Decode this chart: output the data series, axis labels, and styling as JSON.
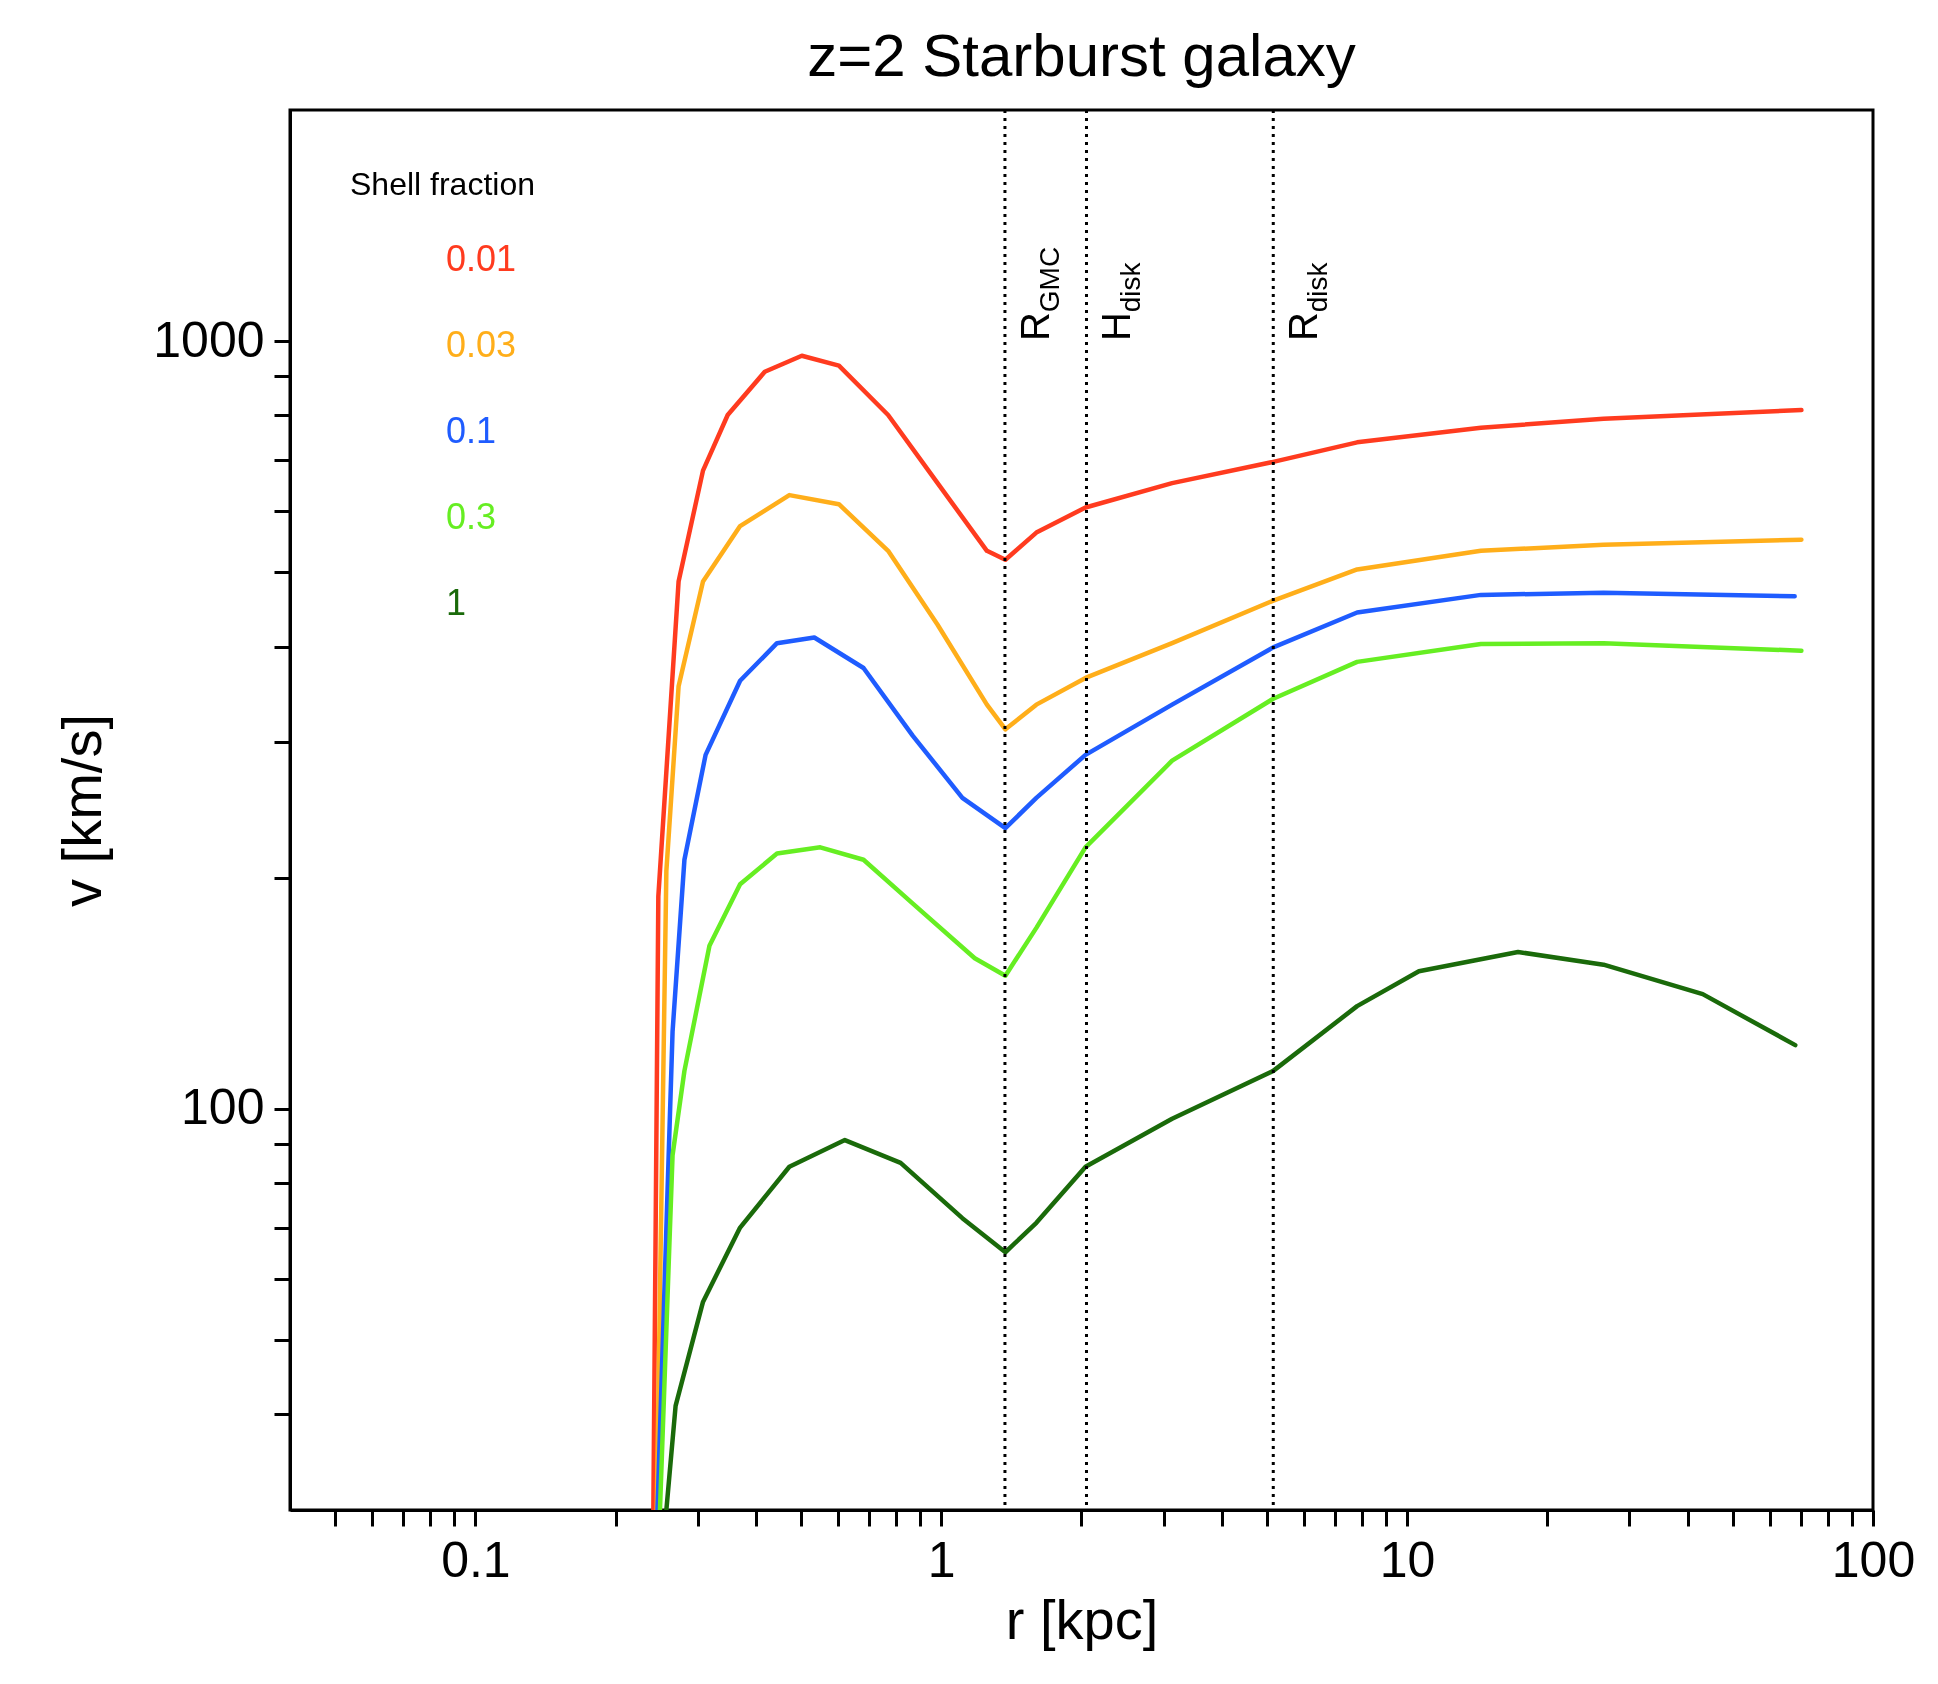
{
  "chart_data": {
    "type": "line",
    "title": "z=2 Starburst galaxy",
    "xlabel": "r [kpc]",
    "ylabel": "v [km/s]",
    "legend_title": "Shell fraction",
    "legend": "top left",
    "log": "xy",
    "grid": false,
    "marker": "none",
    "line_style": "solid",
    "xlim": [
      0.04,
      100
    ],
    "ylim": [
      30,
      2000
    ],
    "xticks": [
      {
        "value": 0.05,
        "label": null
      },
      {
        "value": 0.06,
        "label": null
      },
      {
        "value": 0.07,
        "label": null
      },
      {
        "value": 0.08,
        "label": null
      },
      {
        "value": 0.09,
        "label": null
      },
      0.1,
      {
        "value": 0.2,
        "label": null
      },
      {
        "value": 0.3,
        "label": null
      },
      {
        "value": 0.4,
        "label": null
      },
      {
        "value": 0.5,
        "label": null
      },
      {
        "value": 0.6,
        "label": null
      },
      {
        "value": 0.7,
        "label": null
      },
      {
        "value": 0.8,
        "label": null
      },
      {
        "value": 0.9,
        "label": null
      },
      1,
      {
        "value": 2,
        "label": null
      },
      {
        "value": 3,
        "label": null
      },
      {
        "value": 4,
        "label": null
      },
      {
        "value": 5,
        "label": null
      },
      {
        "value": 6,
        "label": null
      },
      {
        "value": 7,
        "label": null
      },
      {
        "value": 8,
        "label": null
      },
      {
        "value": 9,
        "label": null
      },
      10,
      {
        "value": 20,
        "label": null
      },
      {
        "value": 30,
        "label": null
      },
      {
        "value": 40,
        "label": null
      },
      {
        "value": 50,
        "label": null
      },
      {
        "value": 60,
        "label": null
      },
      {
        "value": 70,
        "label": null
      },
      {
        "value": 80,
        "label": null
      },
      {
        "value": 90,
        "label": null
      },
      100
    ],
    "yticks": [
      {
        "value": 40,
        "label": null
      },
      {
        "value": 50,
        "label": null
      },
      {
        "value": 60,
        "label": null
      },
      {
        "value": 70,
        "label": null
      },
      {
        "value": 80,
        "label": null
      },
      {
        "value": 90,
        "label": null
      },
      100,
      {
        "value": 200,
        "label": null
      },
      {
        "value": 300,
        "label": null
      },
      {
        "value": 400,
        "label": null
      },
      {
        "value": 500,
        "label": null
      },
      {
        "value": 600,
        "label": null
      },
      {
        "value": 700,
        "label": null
      },
      {
        "value": 800,
        "label": null
      },
      {
        "value": 900,
        "label": null
      },
      1000
    ],
    "ref_lines": [
      {
        "axis": "x",
        "value": 1.37,
        "label": "R$_{GMC}$",
        "line_style": "dotted"
      },
      {
        "axis": "x",
        "value": 2.05,
        "label": "H$_{disk}$",
        "line_style": "dotted"
      },
      {
        "axis": "x",
        "value": 5.16,
        "label": "R$_{disk}$",
        "line_style": "dotted"
      }
    ],
    "series": [
      {
        "name": "0.01",
        "color": "#ff3b1f",
        "x": [
          0.241,
          0.247,
          0.273,
          0.308,
          0.348,
          0.418,
          0.502,
          0.603,
          0.769,
          0.982,
          1.253,
          1.373,
          1.6,
          2.04,
          3.13,
          5.16,
          7.81,
          14.4,
          26.4,
          70.2
        ],
        "values": [
          30,
          189,
          486,
          678,
          801,
          912,
          957,
          929,
          801,
          653,
          533,
          519,
          563,
          607,
          653,
          696,
          738,
          771,
          792,
          813
        ]
      },
      {
        "name": "0.03",
        "color": "#ffae1a",
        "x": [
          0.245,
          0.257,
          0.273,
          0.308,
          0.37,
          0.472,
          0.603,
          0.769,
          0.982,
          1.253,
          1.373,
          1.6,
          2.04,
          3.13,
          5.16,
          7.81,
          14.4,
          26.4,
          70.2
        ],
        "values": [
          30,
          204,
          355,
          486,
          574,
          630,
          613,
          533,
          427,
          336,
          312,
          336,
          364,
          404,
          459,
          504,
          533,
          543,
          551
        ]
      },
      {
        "name": "0.1",
        "color": "#1f5cff",
        "x": [
          0.246,
          0.265,
          0.281,
          0.312,
          0.37,
          0.444,
          0.534,
          0.681,
          0.869,
          1.11,
          1.373,
          1.6,
          2.04,
          3.13,
          5.16,
          7.81,
          14.4,
          26.4,
          67.9
        ],
        "values": [
          30,
          126,
          211,
          289,
          361,
          404,
          411,
          375,
          306,
          254,
          232,
          254,
          289,
          336,
          399,
          443,
          467,
          470,
          465
        ]
      },
      {
        "name": "0.3",
        "color": "#66ee22",
        "x": [
          0.249,
          0.265,
          0.281,
          0.318,
          0.37,
          0.444,
          0.55,
          0.681,
          0.869,
          1.18,
          1.373,
          1.6,
          2.04,
          3.13,
          5.16,
          7.81,
          14.4,
          26.4,
          70.2
        ],
        "values": [
          30,
          87,
          112,
          163,
          196,
          215,
          219,
          211,
          185,
          157,
          149,
          172,
          219,
          284,
          342,
          382,
          403,
          404,
          395
        ]
      },
      {
        "name": "1",
        "color": "#1a6a0a",
        "x": [
          0.257,
          0.269,
          0.308,
          0.37,
          0.472,
          0.621,
          0.818,
          1.11,
          1.373,
          1.6,
          2.04,
          3.13,
          5.16,
          7.81,
          10.6,
          17.3,
          26.4,
          43.1,
          68.1
        ],
        "values": [
          30,
          41,
          56,
          70,
          84,
          91,
          85,
          72,
          65,
          71,
          84,
          97,
          112,
          136,
          151,
          160,
          154,
          141,
          121
        ]
      }
    ]
  }
}
